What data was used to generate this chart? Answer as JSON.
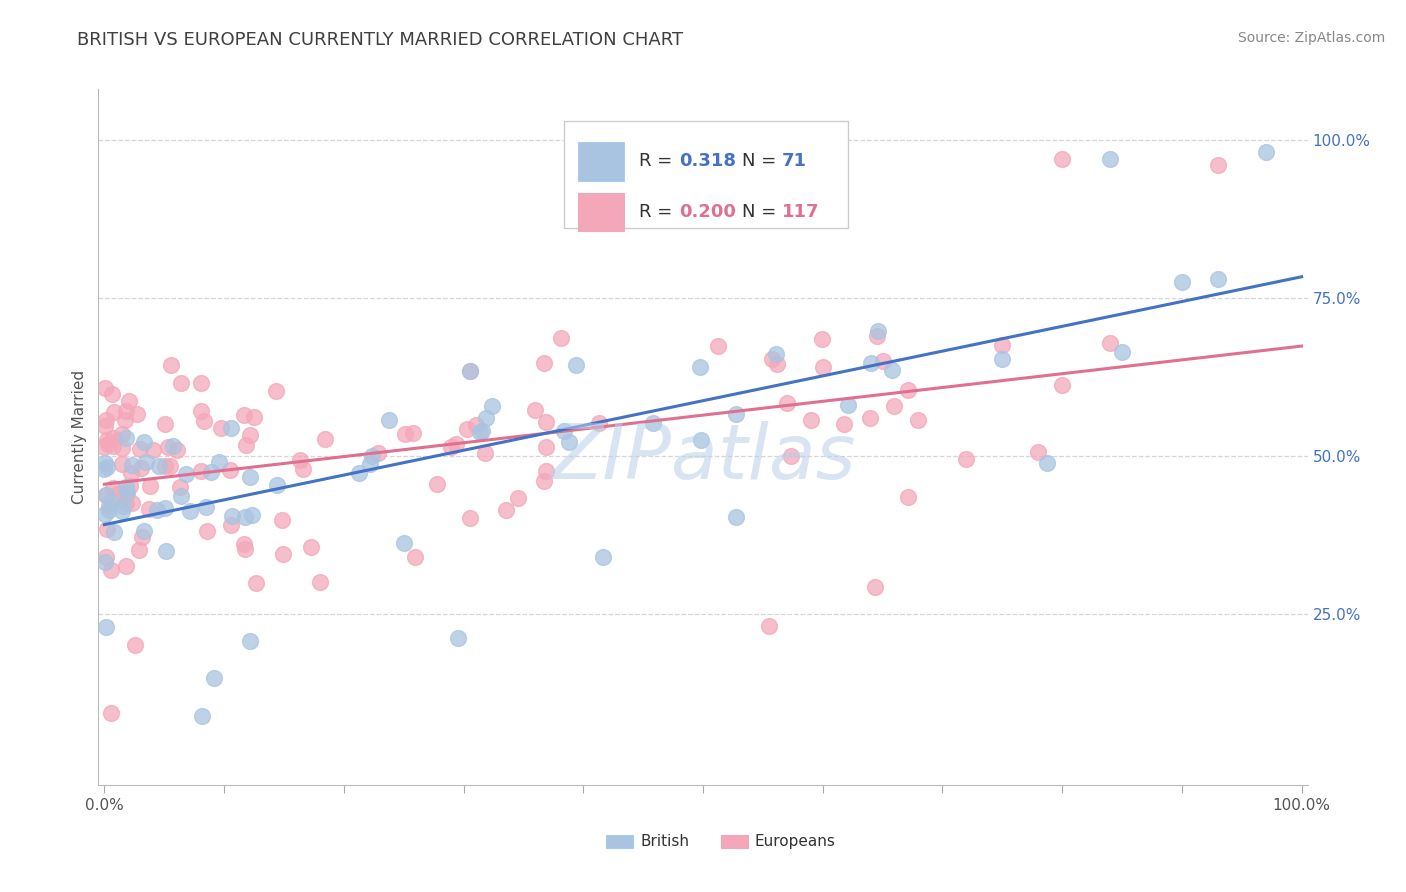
{
  "title": "BRITISH VS EUROPEAN CURRENTLY MARRIED CORRELATION CHART",
  "source_text": "Source: ZipAtlas.com",
  "ylabel": "Currently Married",
  "watermark": "ZIPatlas",
  "british_R": 0.318,
  "british_N": 71,
  "european_R": 0.2,
  "european_N": 117,
  "british_color": "#a8c4e0",
  "british_line_color": "#4472c4",
  "european_color": "#f4a7b9",
  "european_line_color": "#e07090",
  "background_color": "#ffffff",
  "grid_color": "#cccccc",
  "title_color": "#404040",
  "right_tick_color": "#4472c4",
  "title_fontsize": 13,
  "source_fontsize": 10,
  "axis_label_fontsize": 11,
  "legend_fontsize": 13,
  "watermark_fontsize": 55,
  "scatter_size": 130,
  "scatter_alpha": 0.75,
  "line_width": 2.2
}
